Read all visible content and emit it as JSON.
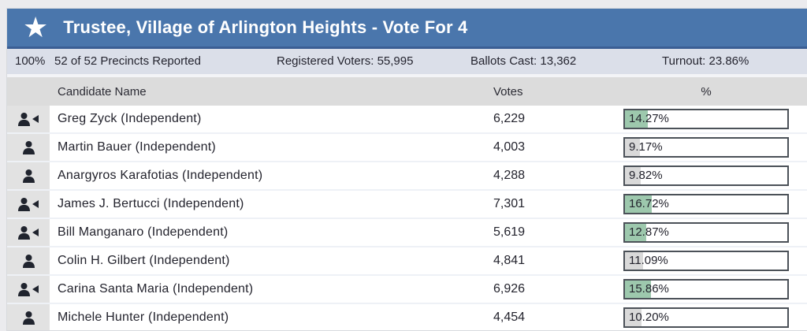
{
  "header": {
    "title": "Trustee, Village of Arlington Heights - Vote For 4",
    "icon": "star-icon"
  },
  "summary": {
    "percent_reported": "100%",
    "precincts": "52 of 52 Precincts Reported",
    "registered_voters": "Registered Voters: 55,995",
    "ballots_cast": "Ballots Cast: 13,362",
    "turnout": "Turnout: 23.86%"
  },
  "table": {
    "col_candidate": "Candidate Name",
    "col_votes": "Votes",
    "col_pct": "%",
    "rows": [
      {
        "candidate": "Greg Zyck (Independent)",
        "votes": "6,229",
        "pct": 14.27,
        "pct_label": "14.27%",
        "winner": true
      },
      {
        "candidate": "Martin Bauer (Independent)",
        "votes": "4,003",
        "pct": 9.17,
        "pct_label": "9.17%",
        "winner": false
      },
      {
        "candidate": "Anargyros Karafotias (Independent)",
        "votes": "4,288",
        "pct": 9.82,
        "pct_label": "9.82%",
        "winner": false
      },
      {
        "candidate": "James J. Bertucci (Independent)",
        "votes": "7,301",
        "pct": 16.72,
        "pct_label": "16.72%",
        "winner": true
      },
      {
        "candidate": "Bill Manganaro (Independent)",
        "votes": "5,619",
        "pct": 12.87,
        "pct_label": "12.87%",
        "winner": true
      },
      {
        "candidate": "Colin H. Gilbert (Independent)",
        "votes": "4,841",
        "pct": 11.09,
        "pct_label": "11.09%",
        "winner": false
      },
      {
        "candidate": "Carina Santa Maria (Independent)",
        "votes": "6,926",
        "pct": 15.86,
        "pct_label": "15.86%",
        "winner": true
      },
      {
        "candidate": "Michele Hunter (Independent)",
        "votes": "4,454",
        "pct": 10.2,
        "pct_label": "10.20%",
        "winner": false
      }
    ]
  },
  "colors": {
    "header_bg": "#4a76ac",
    "header_border": "#3b5e94",
    "summary_bg": "#dbdfe9",
    "winner_fill": "#9dc8ad",
    "other_fill": "#d9d9d9"
  }
}
